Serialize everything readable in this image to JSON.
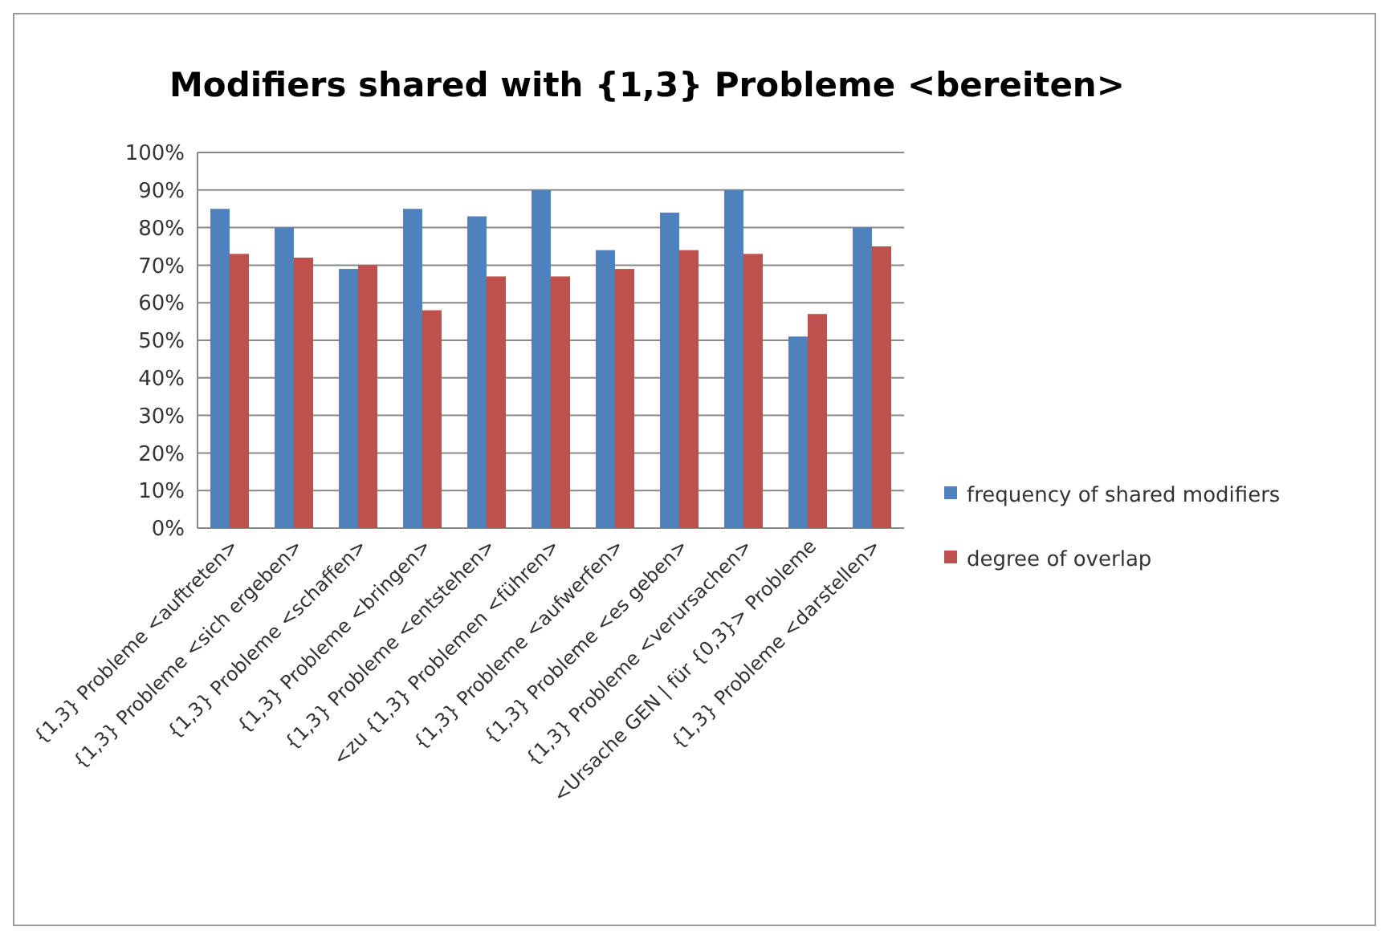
{
  "chart_data": {
    "type": "bar",
    "title": "Modifiers shared with {1,3} Probleme  <bereiten>",
    "categories": [
      "{1,3} Probleme  <auftreten>",
      "{1,3} Probleme <sich ergeben>",
      "{1,3} Probleme <schaffen>",
      "{1,3} Probleme <bringen>",
      "{1,3} Probleme <entstehen>",
      "<zu {1,3} Problemen <führen>",
      "{1,3} Probleme <aufwerfen>",
      "{1,3} Probleme <es geben>",
      "{1,3} Probleme <verursachen>",
      "<Ursache GEN | für {0,3}> Probleme",
      "{1,3} Probleme <darstellen>"
    ],
    "series": [
      {
        "name": "frequency of shared modifiers",
        "color": "#4f81bd",
        "values": [
          85,
          80,
          69,
          85,
          83,
          90,
          74,
          84,
          90,
          51,
          80
        ]
      },
      {
        "name": "degree of overlap",
        "color": "#c0504d",
        "values": [
          73,
          72,
          70,
          58,
          67,
          67,
          69,
          74,
          73,
          57,
          75
        ]
      }
    ],
    "ylim": [
      0,
      100
    ],
    "yticks": [
      {
        "value": 0,
        "label": "0%"
      },
      {
        "value": 10,
        "label": "10%"
      },
      {
        "value": 20,
        "label": "20%"
      },
      {
        "value": 30,
        "label": "30%"
      },
      {
        "value": 40,
        "label": "40%"
      },
      {
        "value": 50,
        "label": "50%"
      },
      {
        "value": 60,
        "label": "60%"
      },
      {
        "value": 70,
        "label": "70%"
      },
      {
        "value": 80,
        "label": "80%"
      },
      {
        "value": 90,
        "label": "90%"
      },
      {
        "value": 100,
        "label": "100%"
      }
    ],
    "grid": "y",
    "legend": "right"
  }
}
